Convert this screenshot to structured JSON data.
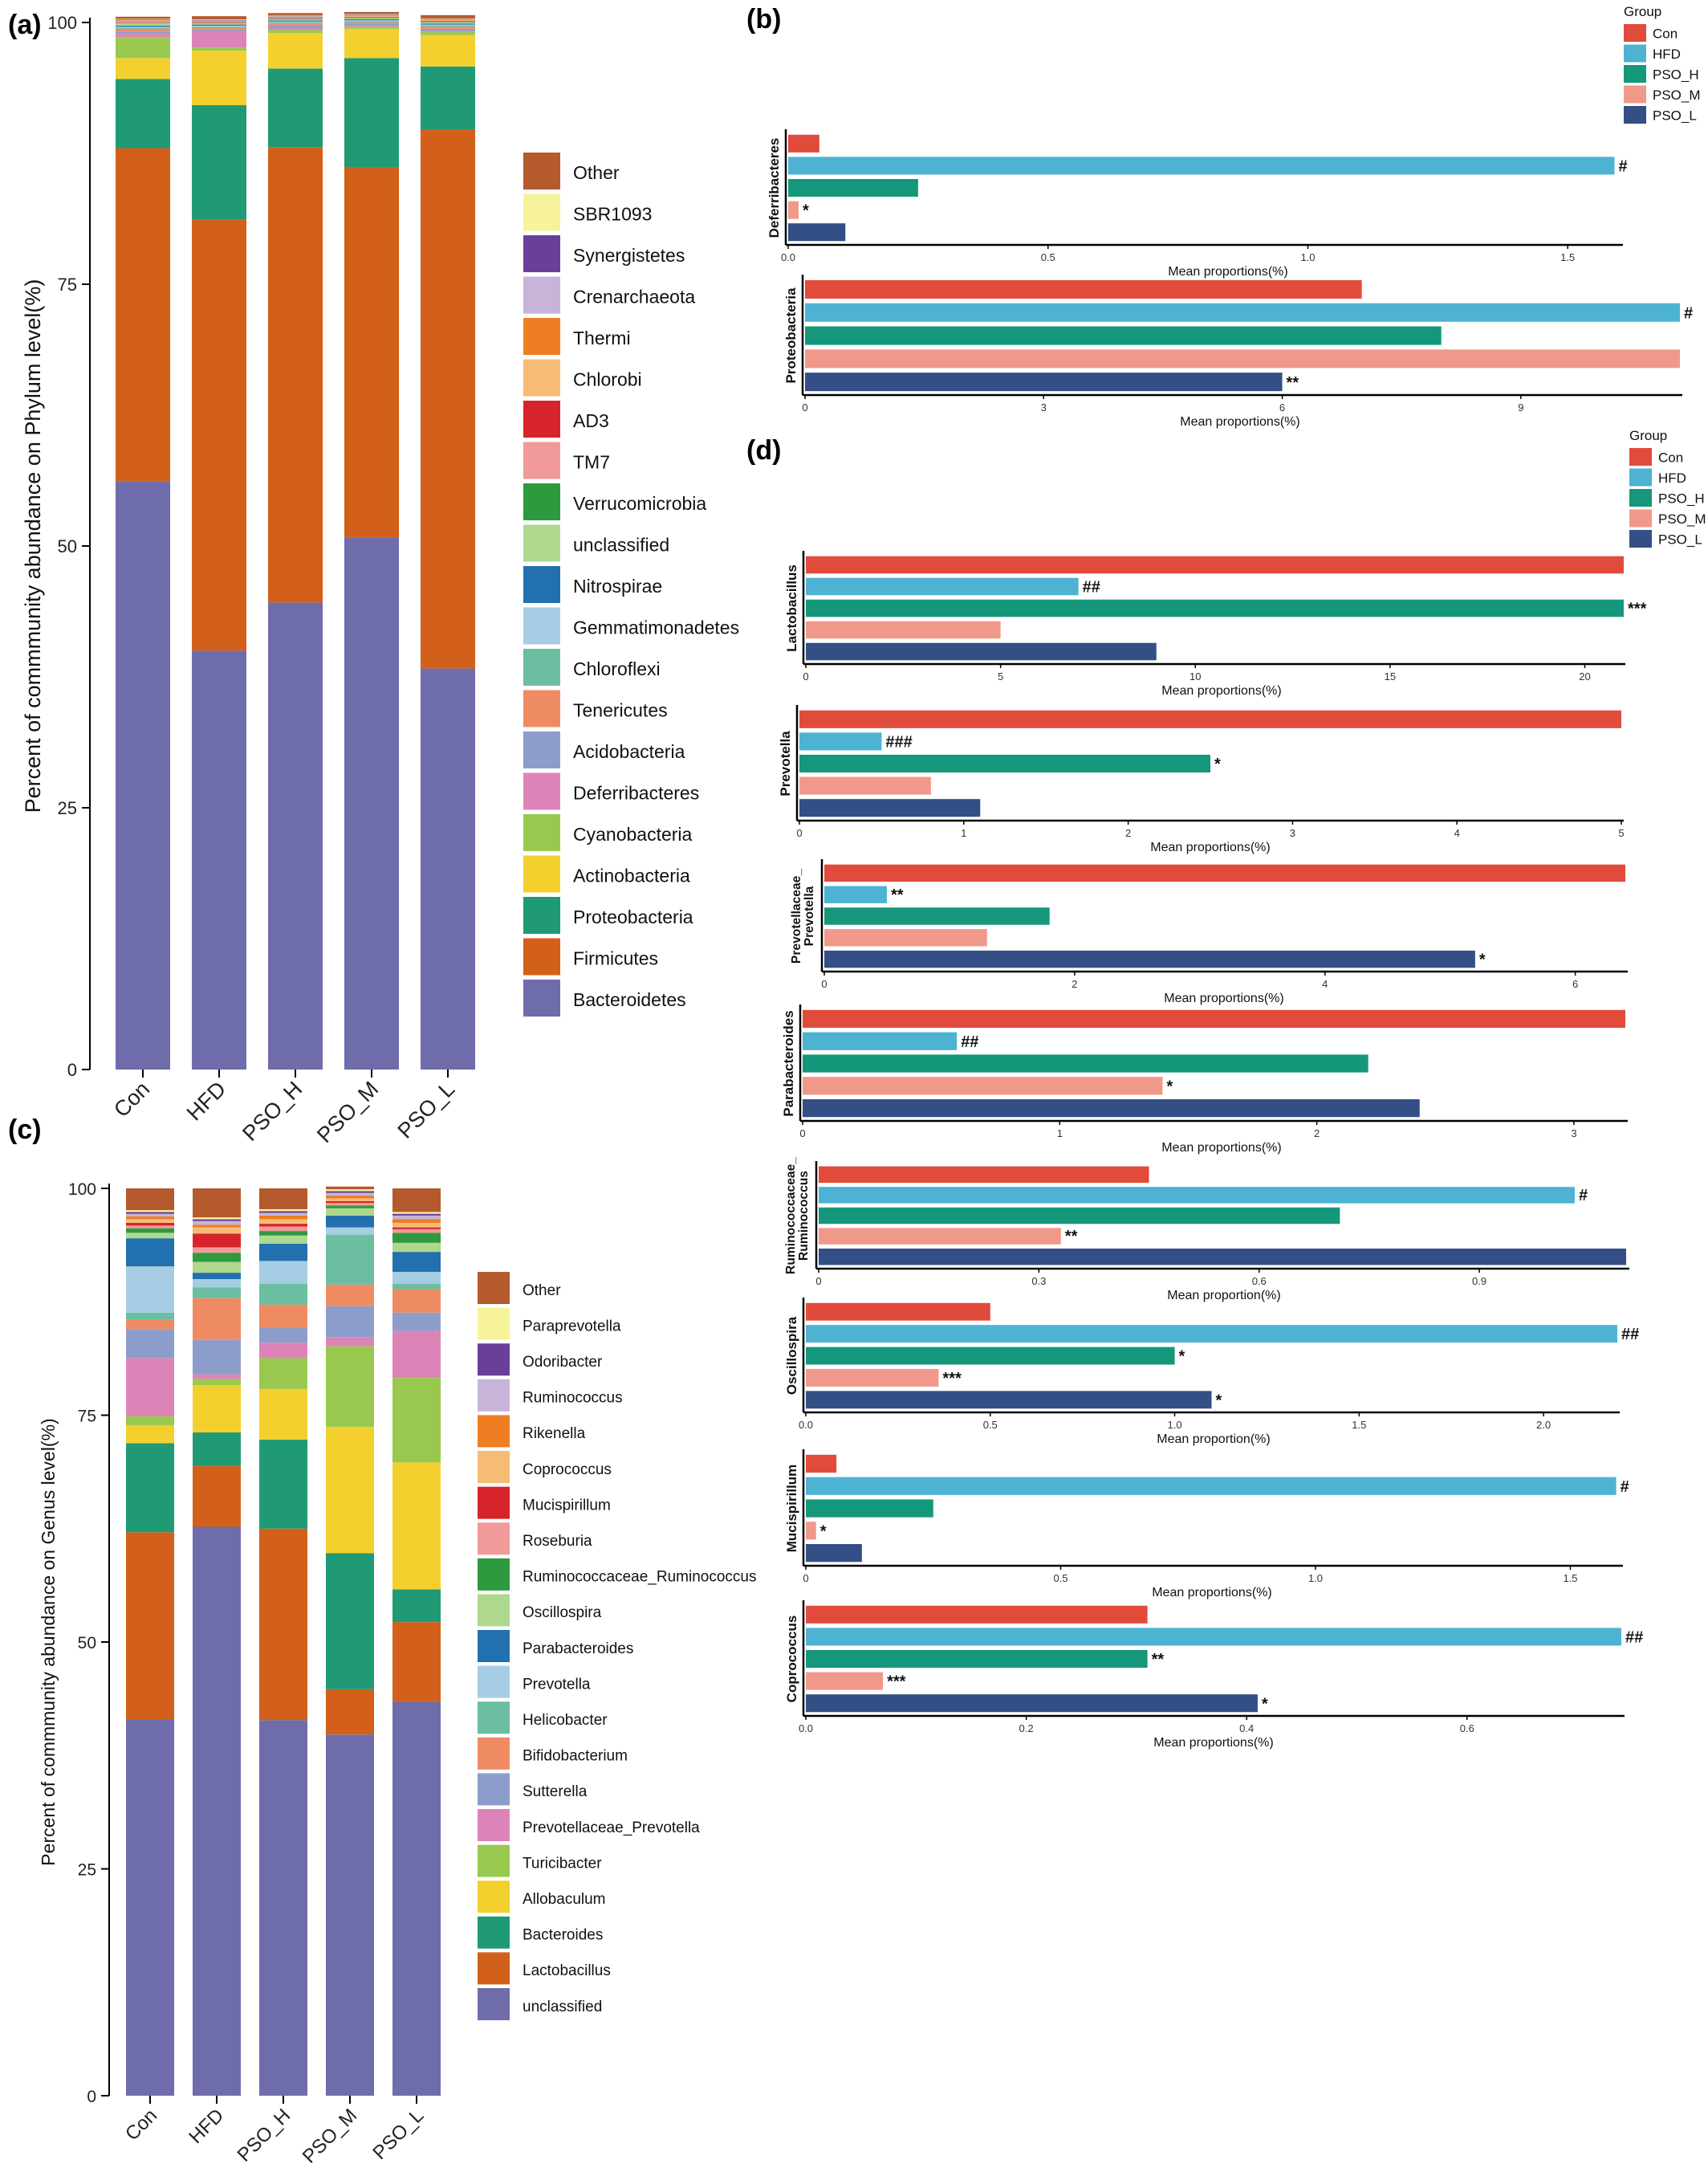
{
  "panel_labels": {
    "a": "(a)",
    "b": "(b)",
    "c": "(c)",
    "d": "(d)"
  },
  "chart_data": [
    {
      "panel": "a",
      "type": "bar",
      "stacked": true,
      "ylabel": "Percent of commmunity abundance on Phylum level(%)",
      "ylim": [
        0,
        100
      ],
      "yticks": [
        0,
        25,
        50,
        75,
        100
      ],
      "categories": [
        "Con",
        "HFD",
        "PSO_H",
        "PSO_M",
        "PSO_L"
      ],
      "legend_position": "right",
      "series": [
        {
          "name": "Bacteroidetes",
          "color": "#6F6CAB",
          "values": [
            56.2,
            40.0,
            44.6,
            50.8,
            38.3
          ]
        },
        {
          "name": "Firmicutes",
          "color": "#D2601A",
          "values": [
            31.8,
            41.2,
            43.5,
            35.4,
            51.5
          ]
        },
        {
          "name": "Proteobacteria",
          "color": "#1F9A74",
          "values": [
            6.6,
            10.9,
            7.5,
            10.4,
            6.0
          ]
        },
        {
          "name": "Actinobacteria",
          "color": "#F3D02E",
          "values": [
            2.0,
            5.2,
            3.4,
            2.8,
            3.0
          ]
        },
        {
          "name": "Cyanobacteria",
          "color": "#98C94E",
          "values": [
            2.0,
            0.3,
            0.3,
            0.2,
            0.3
          ]
        },
        {
          "name": "Deferribacteres",
          "color": "#DE83B8",
          "values": [
            0.3,
            1.5,
            0.2,
            0.1,
            0.1
          ]
        },
        {
          "name": "Acidobacteria",
          "color": "#8D9DCB",
          "values": [
            0.2,
            0.2,
            0.2,
            0.2,
            0.2
          ]
        },
        {
          "name": "Tenericutes",
          "color": "#EF8B63",
          "values": [
            0.3,
            0.2,
            0.2,
            0.1,
            0.2
          ]
        },
        {
          "name": "Chloroflexi",
          "color": "#6BBEA0",
          "values": [
            0.1,
            0.1,
            0.1,
            0.1,
            0.1
          ]
        },
        {
          "name": "Gemmatimonadetes",
          "color": "#A6CDE3",
          "values": [
            0.1,
            0.1,
            0.1,
            0.1,
            0.1
          ]
        },
        {
          "name": "Nitrospirae",
          "color": "#2270AE",
          "values": [
            0.1,
            0.1,
            0.1,
            0.1,
            0.1
          ]
        },
        {
          "name": "unclassified",
          "color": "#AFD88F",
          "values": [
            0.2,
            0.1,
            0.1,
            0.1,
            0.1
          ]
        },
        {
          "name": "Verrucomicrobia",
          "color": "#2E9A3E",
          "values": [
            0.05,
            0.05,
            0.05,
            0.05,
            0.05
          ]
        },
        {
          "name": "TM7",
          "color": "#F09A9A",
          "values": [
            0.1,
            0.05,
            0.05,
            0.05,
            0.05
          ]
        },
        {
          "name": "AD3",
          "color": "#D7242A",
          "values": [
            0.05,
            0.05,
            0.05,
            0.05,
            0.05
          ]
        },
        {
          "name": "Chlorobi",
          "color": "#F6BC75",
          "values": [
            0.05,
            0.05,
            0.05,
            0.05,
            0.05
          ]
        },
        {
          "name": "Thermi",
          "color": "#EE7E21",
          "values": [
            0.05,
            0.05,
            0.05,
            0.05,
            0.05
          ]
        },
        {
          "name": "Crenarchaeota",
          "color": "#C7B4D8",
          "values": [
            0.05,
            0.05,
            0.05,
            0.05,
            0.05
          ]
        },
        {
          "name": "Synergistetes",
          "color": "#6A3F98",
          "values": [
            0.05,
            0.05,
            0.05,
            0.05,
            0.05
          ]
        },
        {
          "name": "SBR1093",
          "color": "#F7F39A",
          "values": [
            0.05,
            0.05,
            0.05,
            0.05,
            0.05
          ]
        },
        {
          "name": "Other",
          "color": "#B45A2C",
          "values": [
            0.2,
            0.3,
            0.2,
            0.2,
            0.3
          ]
        }
      ]
    },
    {
      "panel": "c",
      "type": "bar",
      "stacked": true,
      "ylabel": "Percent of commmunity abundance on Genus level(%)",
      "ylim": [
        0,
        100
      ],
      "yticks": [
        0,
        25,
        50,
        75,
        100
      ],
      "categories": [
        "Con",
        "HFD",
        "PSO_H",
        "PSO_M",
        "PSO_L"
      ],
      "legend_position": "right",
      "series": [
        {
          "name": "unclassified",
          "color": "#6F6CAB",
          "values": [
            41.5,
            62.7,
            41.4,
            39.8,
            43.4
          ]
        },
        {
          "name": "Lactobacillus",
          "color": "#D2601A",
          "values": [
            20.6,
            6.7,
            21.1,
            5.0,
            8.8
          ]
        },
        {
          "name": "Bacteroides",
          "color": "#1F9A74",
          "values": [
            9.8,
            3.7,
            9.8,
            15.0,
            3.6
          ]
        },
        {
          "name": "Allobaculum",
          "color": "#F3D02E",
          "values": [
            2.0,
            5.2,
            5.6,
            13.9,
            14.0
          ]
        },
        {
          "name": "Turicibacter",
          "color": "#98C94E",
          "values": [
            1.0,
            0.7,
            3.4,
            8.9,
            9.4
          ]
        },
        {
          "name": "Prevotellaceae_Prevotella",
          "color": "#DE83B8",
          "values": [
            6.4,
            0.5,
            1.7,
            1.0,
            5.1
          ]
        },
        {
          "name": "Sutterella",
          "color": "#8D9DCB",
          "values": [
            3.2,
            3.8,
            1.6,
            3.4,
            2.0
          ]
        },
        {
          "name": "Bifidobacterium",
          "color": "#EF8B63",
          "values": [
            1.0,
            4.6,
            2.6,
            2.4,
            2.6
          ]
        },
        {
          "name": "Helicobacter",
          "color": "#6BBEA0",
          "values": [
            0.8,
            1.2,
            2.3,
            5.5,
            0.6
          ]
        },
        {
          "name": "Prevotella",
          "color": "#A6CDE3",
          "values": [
            5.1,
            0.9,
            2.5,
            0.8,
            1.3
          ]
        },
        {
          "name": "Parabacteroides",
          "color": "#2270AE",
          "values": [
            3.1,
            0.7,
            1.9,
            1.3,
            2.2
          ]
        },
        {
          "name": "Oscillospira",
          "color": "#AFD88F",
          "values": [
            0.6,
            1.2,
            0.9,
            0.8,
            1.0
          ]
        },
        {
          "name": "Ruminococcaceae_Ruminococcus",
          "color": "#2E9A3E",
          "values": [
            0.5,
            1.0,
            0.5,
            0.3,
            1.1
          ]
        },
        {
          "name": "Roseburia",
          "color": "#F09A9A",
          "values": [
            0.3,
            0.6,
            0.5,
            0.3,
            0.4
          ]
        },
        {
          "name": "Mucispirillum",
          "color": "#D7242A",
          "values": [
            0.3,
            1.5,
            0.3,
            0.2,
            0.2
          ]
        },
        {
          "name": "Coprococcus",
          "color": "#F6BC75",
          "values": [
            0.4,
            0.7,
            0.5,
            0.3,
            0.5
          ]
        },
        {
          "name": "Rikenella",
          "color": "#EE7E21",
          "values": [
            0.3,
            0.3,
            0.4,
            0.3,
            0.4
          ]
        },
        {
          "name": "Ruminococcus",
          "color": "#C7B4D8",
          "values": [
            0.3,
            0.4,
            0.3,
            0.3,
            0.4
          ]
        },
        {
          "name": "Odoribacter",
          "color": "#6A3F98",
          "values": [
            0.2,
            0.2,
            0.2,
            0.2,
            0.2
          ]
        },
        {
          "name": "Paraprevotella",
          "color": "#F7F39A",
          "values": [
            0.2,
            0.2,
            0.2,
            0.2,
            0.2
          ]
        },
        {
          "name": "Other",
          "color": "#B45A2C",
          "values": [
            2.4,
            3.2,
            2.3,
            0.3,
            2.6
          ]
        }
      ]
    },
    {
      "panel": "b",
      "type": "bar",
      "orientation": "horizontal",
      "legend": {
        "title": "Group",
        "position": "top-right",
        "entries": [
          {
            "name": "Con",
            "color": "#E14B3C"
          },
          {
            "name": "HFD",
            "color": "#4EB3D3"
          },
          {
            "name": "PSO_H",
            "color": "#14977A"
          },
          {
            "name": "PSO_M",
            "color": "#F0998A"
          },
          {
            "name": "PSO_L",
            "color": "#344E86"
          }
        ]
      },
      "groups": [
        "Con",
        "HFD",
        "PSO_H",
        "PSO_M",
        "PSO_L"
      ],
      "subplots": [
        {
          "taxon": "Deferribacteres",
          "xlabel": "Mean proportions(%)",
          "xlim": [
            0,
            1.6
          ],
          "xticks": [
            0.0,
            0.5,
            1.0,
            1.5
          ],
          "tick_labels": [
            "0.0",
            "0.5",
            "1.0",
            "1.5"
          ],
          "values": [
            0.06,
            1.59,
            0.25,
            0.02,
            0.11
          ],
          "marks": [
            "",
            "#",
            "",
            "*",
            ""
          ]
        },
        {
          "taxon": "Proteobacteria",
          "xlabel": "Mean proportions(%)",
          "xlim": [
            0,
            11
          ],
          "xticks": [
            0,
            3,
            6,
            9
          ],
          "tick_labels": [
            "0",
            "3",
            "6",
            "9"
          ],
          "values": [
            7.0,
            11.0,
            8.0,
            11.0,
            6.0
          ],
          "marks": [
            "",
            "#",
            "",
            "",
            "**"
          ]
        }
      ]
    },
    {
      "panel": "d",
      "type": "bar",
      "orientation": "horizontal",
      "legend": {
        "title": "Group",
        "position": "top-right",
        "entries": [
          {
            "name": "Con",
            "color": "#E14B3C"
          },
          {
            "name": "HFD",
            "color": "#4EB3D3"
          },
          {
            "name": "PSO_H",
            "color": "#14977A"
          },
          {
            "name": "PSO_M",
            "color": "#F0998A"
          },
          {
            "name": "PSO_L",
            "color": "#344E86"
          }
        ]
      },
      "groups": [
        "Con",
        "HFD",
        "PSO_H",
        "PSO_M",
        "PSO_L"
      ],
      "subplots": [
        {
          "taxon": "Lactobacillus",
          "xlabel": "Mean proportions(%)",
          "xlim": [
            0,
            21
          ],
          "xticks": [
            0,
            5,
            10,
            15,
            20
          ],
          "tick_labels": [
            "0",
            "5",
            "10",
            "15",
            "20"
          ],
          "values": [
            21.0,
            7.0,
            21.0,
            5.0,
            9.0
          ],
          "marks": [
            "",
            "##",
            "***",
            "",
            ""
          ]
        },
        {
          "taxon": "Prevotella",
          "xlabel": "Mean proportions(%)",
          "xlim": [
            0,
            5
          ],
          "xticks": [
            0,
            1,
            2,
            3,
            4,
            5
          ],
          "tick_labels": [
            "0",
            "1",
            "2",
            "3",
            "4",
            "5"
          ],
          "values": [
            5.0,
            0.5,
            2.5,
            0.8,
            1.1
          ],
          "marks": [
            "",
            "###",
            "*",
            "",
            ""
          ]
        },
        {
          "taxon": "Prevotellaceae_Prevotella",
          "xlabel": "Mean proportions(%)",
          "xlim": [
            0,
            6.4
          ],
          "xticks": [
            0,
            2,
            4,
            6
          ],
          "tick_labels": [
            "0",
            "2",
            "4",
            "6"
          ],
          "values": [
            6.4,
            0.5,
            1.8,
            1.3,
            5.2
          ],
          "marks": [
            "",
            "**",
            "",
            "",
            "*"
          ]
        },
        {
          "taxon": "Parabacteroides",
          "xlabel": "Mean proportions(%)",
          "xlim": [
            0,
            3.2
          ],
          "xticks": [
            0,
            1,
            2,
            3
          ],
          "tick_labels": [
            "0",
            "1",
            "2",
            "3"
          ],
          "values": [
            3.2,
            0.6,
            2.2,
            1.4,
            2.4
          ],
          "marks": [
            "",
            "##",
            "",
            "*",
            ""
          ]
        },
        {
          "taxon": "Ruminococcaceae_Ruminococcus",
          "xlabel": "Mean proportion(%)",
          "xlim": [
            0,
            1.1
          ],
          "xticks": [
            0,
            0.3,
            0.6,
            0.9
          ],
          "tick_labels": [
            "0",
            "0.3",
            "0.6",
            "0.9"
          ],
          "values": [
            0.45,
            1.03,
            0.71,
            0.33,
            1.1
          ],
          "marks": [
            "",
            "#",
            "",
            "**",
            ""
          ]
        },
        {
          "taxon": "Oscillospira",
          "xlabel": "Mean proportion(%)",
          "xlim": [
            0,
            2.2
          ],
          "xticks": [
            0.0,
            0.5,
            1.0,
            1.5,
            2.0
          ],
          "tick_labels": [
            "0.0",
            "0.5",
            "1.0",
            "1.5",
            "2.0"
          ],
          "values": [
            0.5,
            2.2,
            1.0,
            0.36,
            1.1
          ],
          "marks": [
            "",
            "##",
            "*",
            "***",
            "*"
          ]
        },
        {
          "taxon": "Mucispirillum",
          "xlabel": "Mean proportions(%)",
          "xlim": [
            0,
            1.6
          ],
          "xticks": [
            0.0,
            0.5,
            1.0,
            1.5
          ],
          "tick_labels": [
            "0",
            "0.5",
            "1.0",
            "1.5"
          ],
          "values": [
            0.06,
            1.59,
            0.25,
            0.02,
            0.11
          ],
          "marks": [
            "",
            "#",
            "",
            "*",
            ""
          ]
        },
        {
          "taxon": "Coprococcus",
          "xlabel": "Mean proportions(%)",
          "xlim": [
            0,
            0.74
          ],
          "xticks": [
            0.0,
            0.2,
            0.4,
            0.6
          ],
          "tick_labels": [
            "0.0",
            "0.2",
            "0.4",
            "0.6"
          ],
          "values": [
            0.31,
            0.74,
            0.31,
            0.07,
            0.41
          ],
          "marks": [
            "",
            "##",
            "**",
            "***",
            "*"
          ]
        }
      ]
    }
  ]
}
